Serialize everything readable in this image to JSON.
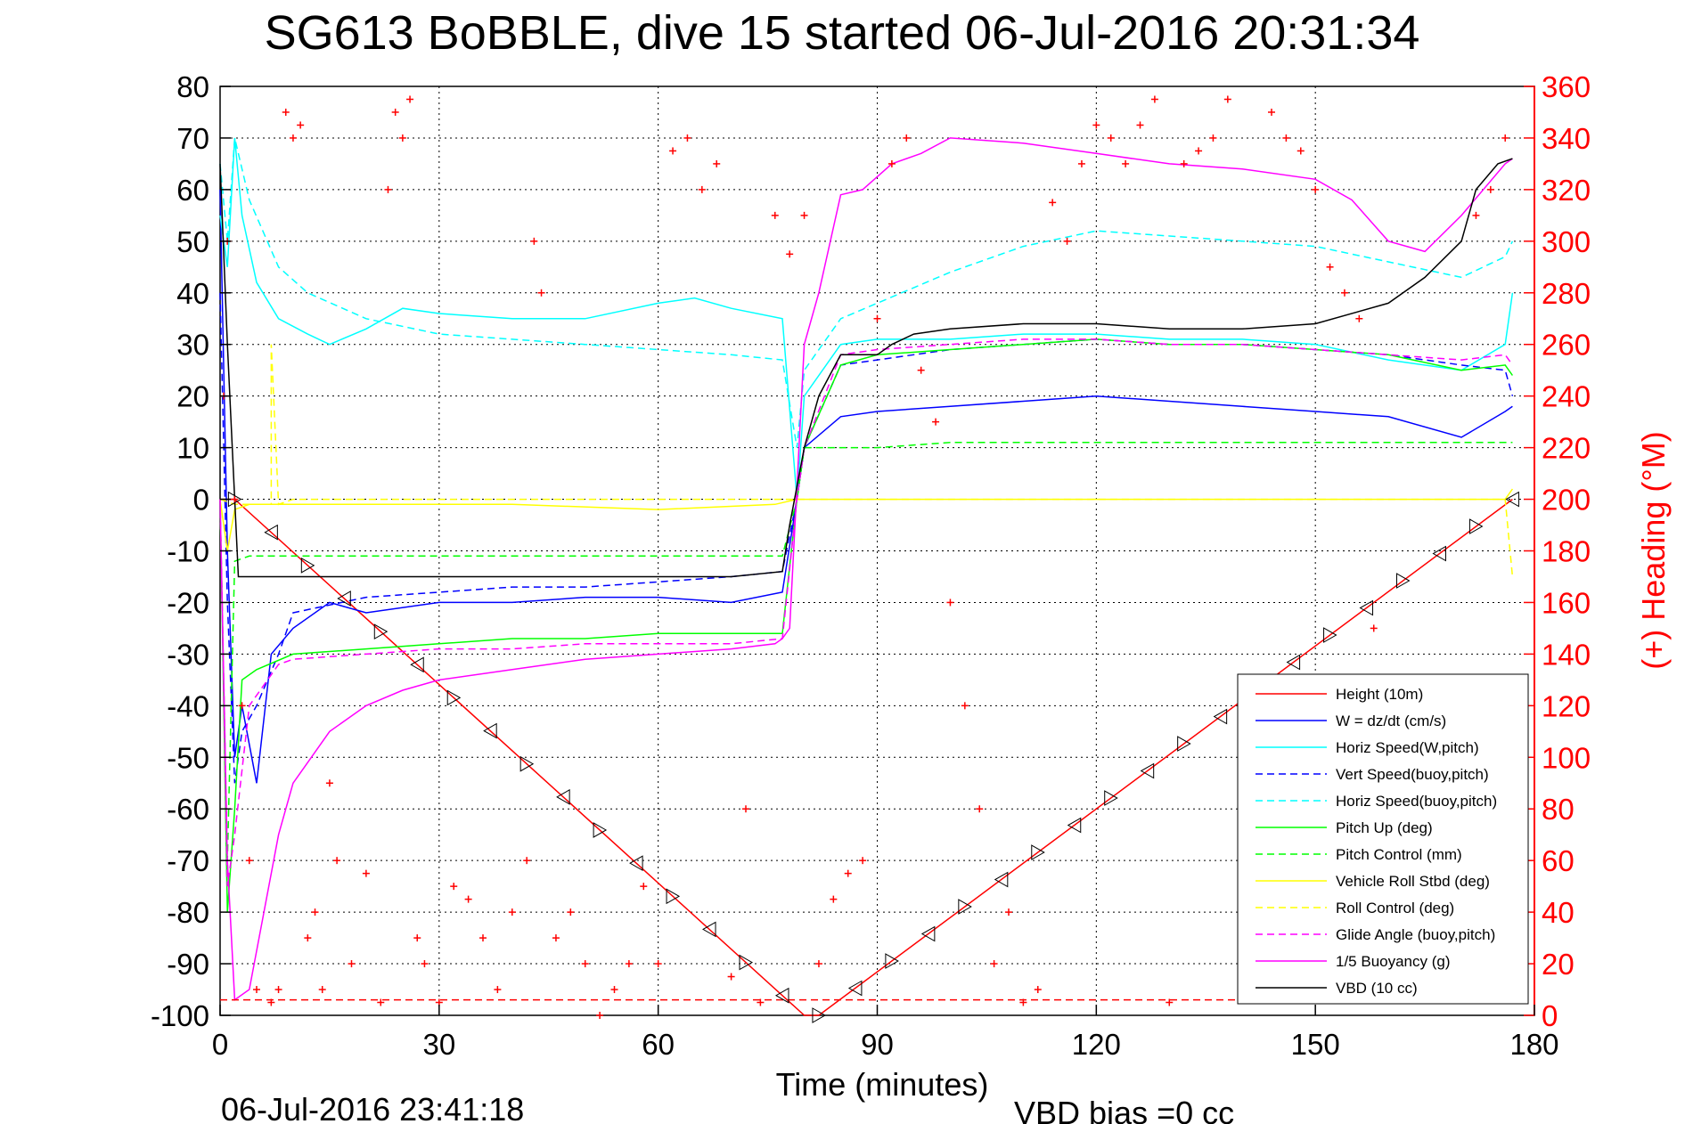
{
  "chart_data": {
    "type": "line",
    "title": "SG613 BoBBLE, dive 15 started 06-Jul-2016 20:31:34",
    "xlabel": "Time (minutes)",
    "ylabel": "",
    "y2label": "(+) Heading (°M)",
    "xlim": [
      0,
      180
    ],
    "ylim": [
      -100,
      80
    ],
    "y2lim": [
      0,
      360
    ],
    "x_ticks": [
      0,
      30,
      60,
      90,
      120,
      150,
      180
    ],
    "y_ticks": [
      80,
      70,
      60,
      50,
      40,
      30,
      20,
      10,
      0,
      -10,
      -20,
      -30,
      -40,
      -50,
      -60,
      -70,
      -80,
      -90,
      -100
    ],
    "y2_ticks": [
      360,
      340,
      320,
      300,
      280,
      260,
      240,
      220,
      200,
      180,
      160,
      140,
      120,
      100,
      80,
      60,
      40,
      20,
      0
    ],
    "grid": true,
    "legend_position": "bottom-right",
    "footer_left": "06-Jul-2016 23:41:18",
    "footer_right": "VBD bias =0 cc",
    "series": [
      {
        "name": "Height (10m)",
        "color": "#ff0000",
        "style": "solid",
        "x": [
          0,
          2,
          80,
          82,
          177
        ],
        "y": [
          0,
          0,
          -100,
          -100,
          0
        ]
      },
      {
        "name": "W = dz/dt (cm/s)",
        "color": "#0000ff",
        "style": "solid",
        "x": [
          0,
          1,
          2,
          3,
          5,
          7,
          10,
          15,
          20,
          30,
          40,
          50,
          60,
          70,
          77,
          79,
          80,
          85,
          90,
          100,
          110,
          120,
          130,
          140,
          150,
          160,
          170,
          176,
          177
        ],
        "y": [
          60,
          -10,
          -50,
          -40,
          -55,
          -30,
          -25,
          -20,
          -22,
          -20,
          -20,
          -19,
          -19,
          -20,
          -18,
          0,
          10,
          16,
          17,
          18,
          19,
          20,
          19,
          18,
          17,
          16,
          12,
          17,
          18
        ]
      },
      {
        "name": "Horiz Speed(W,pitch)",
        "color": "#00ffff",
        "style": "solid",
        "x": [
          0,
          1,
          2,
          3,
          5,
          8,
          12,
          15,
          20,
          25,
          30,
          40,
          50,
          60,
          65,
          70,
          77,
          79,
          80,
          85,
          90,
          100,
          110,
          120,
          130,
          140,
          150,
          160,
          170,
          176,
          177
        ],
        "y": [
          55,
          45,
          70,
          55,
          42,
          35,
          32,
          30,
          33,
          37,
          36,
          35,
          35,
          38,
          39,
          37,
          35,
          0,
          20,
          30,
          31,
          31,
          32,
          32,
          31,
          31,
          30,
          27,
          25,
          30,
          40
        ]
      },
      {
        "name": "Vert Speed(buoy,pitch)",
        "color": "#0000ff",
        "style": "dashed",
        "x": [
          0,
          1,
          2,
          3,
          5,
          8,
          10,
          20,
          30,
          40,
          50,
          60,
          70,
          77,
          79,
          80,
          85,
          90,
          100,
          110,
          120,
          130,
          140,
          150,
          160,
          170,
          176,
          177
        ],
        "y": [
          40,
          -20,
          -55,
          -45,
          -40,
          -30,
          -22,
          -19,
          -18,
          -17,
          -17,
          -16,
          -15,
          -14,
          0,
          10,
          26,
          27,
          29,
          30,
          31,
          30,
          30,
          29,
          28,
          26,
          25,
          20
        ]
      },
      {
        "name": "Horiz Speed(buoy,pitch)",
        "color": "#00ffff",
        "style": "dashed",
        "x": [
          0,
          1,
          2,
          4,
          8,
          12,
          20,
          30,
          40,
          50,
          60,
          70,
          77,
          79,
          80,
          85,
          90,
          100,
          110,
          120,
          130,
          140,
          150,
          160,
          170,
          176,
          177
        ],
        "y": [
          65,
          50,
          70,
          58,
          45,
          40,
          35,
          32,
          31,
          30,
          29,
          28,
          27,
          10,
          25,
          35,
          38,
          44,
          49,
          52,
          51,
          50,
          49,
          46,
          43,
          47,
          50
        ]
      },
      {
        "name": "Pitch Up (deg)",
        "color": "#00ff00",
        "style": "solid",
        "x": [
          0,
          1,
          2,
          3,
          5,
          10,
          20,
          30,
          40,
          50,
          60,
          70,
          77,
          79,
          80,
          85,
          90,
          100,
          110,
          120,
          130,
          140,
          150,
          160,
          170,
          176,
          177
        ],
        "y": [
          0,
          -80,
          -60,
          -35,
          -33,
          -30,
          -29,
          -28,
          -27,
          -27,
          -26,
          -26,
          -26,
          0,
          10,
          26,
          28,
          29,
          30,
          31,
          30,
          30,
          29,
          28,
          25,
          26,
          24
        ]
      },
      {
        "name": "Pitch Control (mm)",
        "color": "#00ff00",
        "style": "dashed",
        "x": [
          0,
          1,
          2,
          4,
          10,
          20,
          40,
          60,
          77,
          79,
          80,
          90,
          100,
          120,
          140,
          160,
          177
        ],
        "y": [
          0,
          -70,
          -12,
          -11,
          -11,
          -11,
          -11,
          -11,
          -11,
          0,
          10,
          10,
          11,
          11,
          11,
          11,
          11
        ]
      },
      {
        "name": "Vehicle Roll Stbd (deg)",
        "color": "#ffff00",
        "style": "solid",
        "x": [
          0,
          1,
          2,
          4,
          10,
          20,
          40,
          60,
          76,
          79,
          80,
          90,
          120,
          150,
          176,
          177
        ],
        "y": [
          0,
          -10,
          -2,
          -1,
          -1,
          -1,
          -1,
          -2,
          -1,
          0,
          0,
          0,
          0,
          0,
          0,
          2
        ]
      },
      {
        "name": "Roll Control (deg)",
        "color": "#ffff00",
        "style": "dashed",
        "x": [
          0,
          2,
          7,
          7,
          8,
          10,
          20,
          40,
          60,
          80,
          90,
          100,
          120,
          140,
          160,
          176,
          177
        ],
        "y": [
          0,
          -1,
          -1,
          30,
          -1,
          0,
          0,
          0,
          0,
          0,
          0,
          0,
          0,
          0,
          0,
          0,
          -15
        ]
      },
      {
        "name": "Glide Angle (buoy,pitch)",
        "color": "#ff00ff",
        "style": "dashed",
        "x": [
          0,
          1,
          2,
          4,
          8,
          10,
          20,
          30,
          40,
          50,
          60,
          70,
          77,
          79,
          80,
          85,
          90,
          100,
          110,
          120,
          130,
          140,
          150,
          160,
          170,
          176,
          177
        ],
        "y": [
          0,
          -75,
          -65,
          -40,
          -32,
          -31,
          -30,
          -29,
          -29,
          -28,
          -28,
          -28,
          -27,
          0,
          10,
          28,
          29,
          30,
          31,
          31,
          30,
          30,
          29,
          28,
          27,
          28,
          26
        ]
      },
      {
        "name": "1/5 Buoyancy (g)",
        "color": "#ff00ff",
        "style": "solid",
        "x": [
          0,
          1,
          2,
          4,
          6,
          8,
          10,
          15,
          20,
          25,
          30,
          40,
          50,
          60,
          70,
          76,
          77,
          78,
          80,
          82,
          85,
          88,
          92,
          96,
          100,
          110,
          120,
          130,
          140,
          150,
          155,
          160,
          165,
          170,
          176,
          177
        ],
        "y": [
          0,
          -70,
          -97,
          -95,
          -80,
          -65,
          -55,
          -45,
          -40,
          -37,
          -35,
          -33,
          -31,
          -30,
          -29,
          -28,
          -27,
          -25,
          30,
          40,
          59,
          60,
          65,
          67,
          70,
          69,
          67,
          65,
          64,
          62,
          58,
          50,
          48,
          55,
          65,
          66
        ]
      },
      {
        "name": "VBD (10 cc)",
        "color": "#000000",
        "style": "solid",
        "x": [
          0,
          1,
          2,
          2.5,
          10,
          30,
          50,
          70,
          77,
          78,
          80,
          82,
          85,
          90,
          92,
          95,
          100,
          110,
          120,
          130,
          140,
          150,
          160,
          165,
          170,
          172,
          175,
          177
        ],
        "y": [
          65,
          30,
          0,
          -15,
          -15,
          -15,
          -15,
          -15,
          -14,
          -5,
          10,
          20,
          28,
          28,
          30,
          32,
          33,
          34,
          34,
          33,
          33,
          34,
          38,
          43,
          50,
          60,
          65,
          66
        ]
      },
      {
        "name": "",
        "color": "#ff0000",
        "style": "dashed",
        "x": [
          0,
          177
        ],
        "y": [
          -97,
          -97
        ]
      }
    ],
    "heading_series": {
      "name": "(+) Heading (°M)",
      "color": "#ff0000",
      "marker": "+",
      "x": [
        0.5,
        1,
        2,
        3,
        4,
        5,
        7,
        8,
        9,
        10,
        11,
        12,
        13,
        14,
        15,
        16,
        18,
        20,
        22,
        23,
        24,
        25,
        26,
        27,
        28,
        30,
        32,
        34,
        36,
        38,
        40,
        42,
        43,
        44,
        46,
        48,
        50,
        52,
        54,
        56,
        58,
        60,
        62,
        64,
        66,
        68,
        70,
        72,
        74,
        76,
        78,
        80,
        82,
        84,
        86,
        88,
        90,
        92,
        94,
        96,
        98,
        100,
        102,
        104,
        106,
        108,
        110,
        112,
        114,
        116,
        118,
        120,
        122,
        124,
        126,
        128,
        130,
        132,
        134,
        136,
        138,
        140,
        142,
        144,
        146,
        148,
        150,
        152,
        154,
        156,
        158,
        160,
        162,
        164,
        166,
        168,
        170,
        172,
        174,
        176
      ],
      "y": [
        240,
        300,
        200,
        120,
        60,
        10,
        5,
        10,
        350,
        340,
        345,
        30,
        40,
        10,
        90,
        60,
        20,
        55,
        5,
        320,
        350,
        340,
        355,
        30,
        20,
        5,
        50,
        45,
        30,
        10,
        40,
        60,
        300,
        280,
        30,
        40,
        20,
        0,
        10,
        20,
        50,
        20,
        335,
        340,
        320,
        330,
        15,
        80,
        5,
        310,
        295,
        310,
        20,
        45,
        55,
        60,
        270,
        330,
        340,
        250,
        230,
        160,
        120,
        80,
        20,
        40,
        5,
        10,
        315,
        300,
        330,
        345,
        340,
        330,
        345,
        355,
        5,
        330,
        335,
        340,
        355,
        50,
        30,
        350,
        340,
        335,
        320,
        290,
        280,
        270,
        150,
        130,
        90,
        50,
        30,
        40,
        60,
        310,
        320,
        340
      ]
    }
  }
}
